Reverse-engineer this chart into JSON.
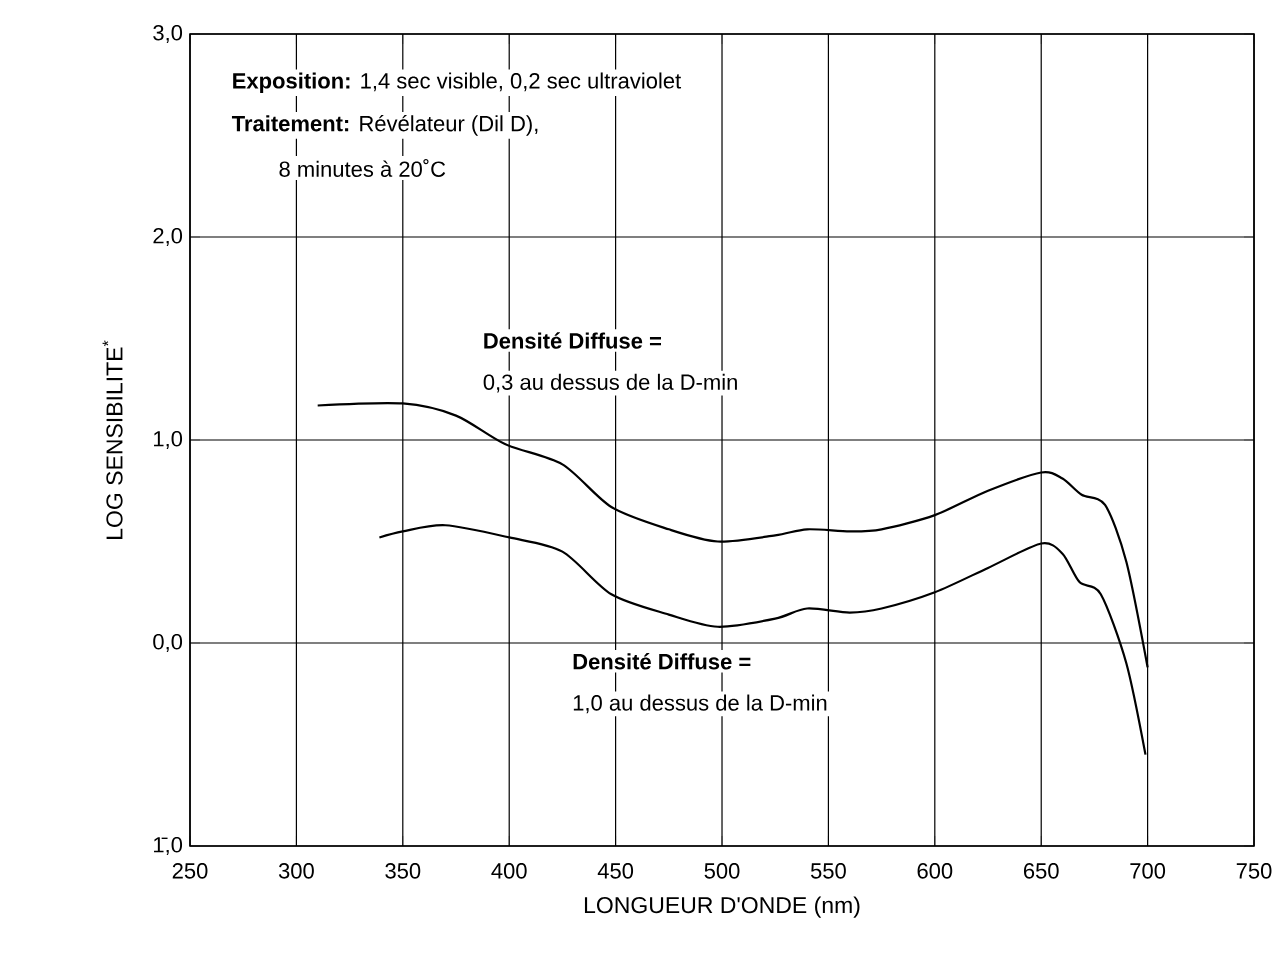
{
  "chart_data": {
    "type": "line",
    "xlabel": "LONGUEUR D'ONDE (nm)",
    "ylabel": "LOG SENSIBILITE$^{*}$",
    "x": [
      310,
      350,
      375,
      398,
      425,
      448,
      475,
      498,
      525,
      540,
      560,
      575,
      600,
      625,
      650,
      660,
      669,
      680,
      690,
      700
    ],
    "series": [
      {
        "color": "#000000",
        "values": [
          1.17,
          1.18,
          1.12,
          0.98,
          0.88,
          0.67,
          0.56,
          0.5,
          0.53,
          0.56,
          0.55,
          0.56,
          0.63,
          0.75,
          0.84,
          0.81,
          0.73,
          0.68,
          0.4,
          -0.12
        ]
      },
      {
        "color": "#000000",
        "x": [
          339,
          350,
          370,
          400,
          425,
          448,
          475,
          498,
          525,
          540,
          560,
          575,
          600,
          625,
          650,
          660,
          668,
          678,
          690,
          699
        ],
        "values": [
          0.52,
          0.55,
          0.58,
          0.52,
          0.45,
          0.24,
          0.14,
          0.08,
          0.12,
          0.17,
          0.15,
          0.17,
          0.25,
          0.37,
          0.49,
          0.44,
          0.3,
          0.24,
          -0.1,
          -0.55
        ]
      }
    ],
    "xlim": [
      250,
      750
    ],
    "xticks": [
      250,
      300,
      350,
      400,
      450,
      500,
      550,
      600,
      650,
      700,
      750
    ],
    "ylim": [
      -1,
      3
    ],
    "yticks": [
      {
        "value": -1,
        "label": "1̄,0"
      },
      {
        "value": 0,
        "label": "0,0"
      },
      {
        "value": 1,
        "label": "1,0"
      },
      {
        "value": 2,
        "label": "2,0"
      },
      {
        "value": 3,
        "label": "3,0"
      }
    ],
    "grid": true,
    "marker": "none",
    "line_style": "solid",
    "annotations": [
      "**Exposition:**  1,4 sec visible, 0,2 sec ultraviolet",
      "**Traitement:**      Révélateur (Dil D),",
      "8 minutes à 20˚C",
      "Densité Diffuse =",
      "0,3 au dessus de la D-min",
      "Densité Diffuse =",
      "1,0 au dessus de la D-min"
    ]
  }
}
